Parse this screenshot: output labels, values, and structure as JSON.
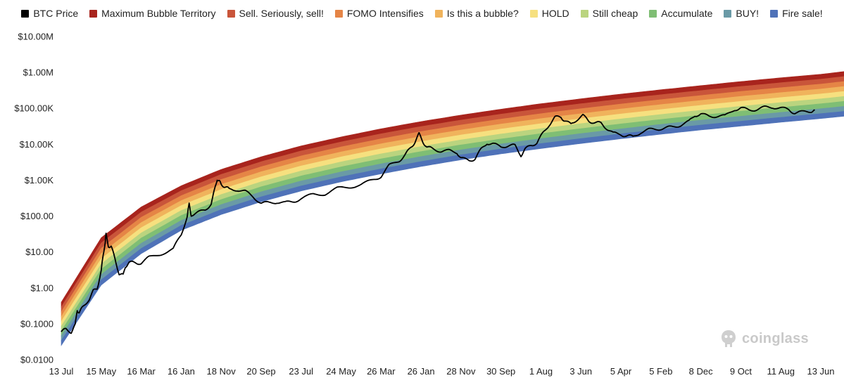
{
  "chart_data": {
    "type": "line",
    "title": "",
    "xlabel": "",
    "ylabel": "",
    "y_scale": "log",
    "ylim": [
      0.01,
      10000000
    ],
    "y_ticks": [
      {
        "value": 0.01,
        "label": "$0.0100"
      },
      {
        "value": 0.1,
        "label": "$0.1000"
      },
      {
        "value": 1,
        "label": "$1.00"
      },
      {
        "value": 10,
        "label": "$10.00"
      },
      {
        "value": 100,
        "label": "$100.00"
      },
      {
        "value": 1000,
        "label": "$1.00K"
      },
      {
        "value": 10000,
        "label": "$10.00K"
      },
      {
        "value": 100000,
        "label": "$100.00K"
      },
      {
        "value": 1000000,
        "label": "$1.00M"
      },
      {
        "value": 10000000,
        "label": "$10.00M"
      }
    ],
    "x_tick_labels": [
      "13 Jul",
      "15 May",
      "16 Mar",
      "16 Jan",
      "18 Nov",
      "20 Sep",
      "23 Jul",
      "24 May",
      "26 Mar",
      "26 Jan",
      "28 Nov",
      "30 Sep",
      "1 Aug",
      "3 Jun",
      "5 Apr",
      "5 Feb",
      "8 Dec",
      "9 Oct",
      "11 Aug",
      "13 Jun"
    ],
    "legend_position": "top",
    "grid": false,
    "bands": [
      {
        "name": "Maximum Bubble Territory",
        "color": "#a8241d"
      },
      {
        "name": "Sell. Seriously, sell!",
        "color": "#c9553a"
      },
      {
        "name": "FOMO Intensifies",
        "color": "#e58546"
      },
      {
        "name": "Is this a bubble?",
        "color": "#f0b35c"
      },
      {
        "name": "HOLD",
        "color": "#f6e07f"
      },
      {
        "name": "Still cheap",
        "color": "#bad47f"
      },
      {
        "name": "Accumulate",
        "color": "#7fbe74"
      },
      {
        "name": "BUY!",
        "color": "#6a9aa6"
      },
      {
        "name": "Fire sale!",
        "color": "#4f72b8"
      }
    ],
    "band_top_edge": [
      {
        "x": 0,
        "y": 0.4
      },
      {
        "x": 1,
        "y": 25
      },
      {
        "x": 2,
        "y": 180
      },
      {
        "x": 3,
        "y": 700
      },
      {
        "x": 4,
        "y": 2000
      },
      {
        "x": 5,
        "y": 4500
      },
      {
        "x": 6,
        "y": 9000
      },
      {
        "x": 7,
        "y": 16000
      },
      {
        "x": 8,
        "y": 27000
      },
      {
        "x": 9,
        "y": 43000
      },
      {
        "x": 10,
        "y": 65000
      },
      {
        "x": 11,
        "y": 95000
      },
      {
        "x": 12,
        "y": 135000
      },
      {
        "x": 13,
        "y": 185000
      },
      {
        "x": 14,
        "y": 250000
      },
      {
        "x": 15,
        "y": 330000
      },
      {
        "x": 16,
        "y": 430000
      },
      {
        "x": 17,
        "y": 560000
      },
      {
        "x": 18,
        "y": 710000
      },
      {
        "x": 19,
        "y": 890000
      },
      {
        "x": 19.7,
        "y": 1100000
      }
    ],
    "band_bottom_edge": [
      {
        "x": 0,
        "y": 0.025
      },
      {
        "x": 1,
        "y": 1.2
      },
      {
        "x": 2,
        "y": 9
      },
      {
        "x": 3,
        "y": 40
      },
      {
        "x": 4,
        "y": 110
      },
      {
        "x": 5,
        "y": 250
      },
      {
        "x": 6,
        "y": 500
      },
      {
        "x": 7,
        "y": 900
      },
      {
        "x": 8,
        "y": 1500
      },
      {
        "x": 9,
        "y": 2400
      },
      {
        "x": 10,
        "y": 3700
      },
      {
        "x": 11,
        "y": 5400
      },
      {
        "x": 12,
        "y": 7600
      },
      {
        "x": 13,
        "y": 10500
      },
      {
        "x": 14,
        "y": 14200
      },
      {
        "x": 15,
        "y": 19000
      },
      {
        "x": 16,
        "y": 25000
      },
      {
        "x": 17,
        "y": 32000
      },
      {
        "x": 18,
        "y": 41000
      },
      {
        "x": 19,
        "y": 52000
      },
      {
        "x": 19.7,
        "y": 62000
      }
    ],
    "series": [
      {
        "name": "BTC Price",
        "color": "#000000",
        "points": [
          {
            "x": 0.0,
            "y": 0.06
          },
          {
            "x": 0.12,
            "y": 0.07
          },
          {
            "x": 0.25,
            "y": 0.06
          },
          {
            "x": 0.35,
            "y": 0.09
          },
          {
            "x": 0.4,
            "y": 0.25
          },
          {
            "x": 0.45,
            "y": 0.2
          },
          {
            "x": 0.55,
            "y": 0.3
          },
          {
            "x": 0.7,
            "y": 0.5
          },
          {
            "x": 0.8,
            "y": 0.8
          },
          {
            "x": 0.9,
            "y": 1.0
          },
          {
            "x": 1.0,
            "y": 3.0
          },
          {
            "x": 1.05,
            "y": 8
          },
          {
            "x": 1.1,
            "y": 20
          },
          {
            "x": 1.12,
            "y": 30
          },
          {
            "x": 1.18,
            "y": 15
          },
          {
            "x": 1.25,
            "y": 14
          },
          {
            "x": 1.35,
            "y": 6
          },
          {
            "x": 1.45,
            "y": 2.5
          },
          {
            "x": 1.55,
            "y": 2.2
          },
          {
            "x": 1.6,
            "y": 4
          },
          {
            "x": 1.7,
            "y": 5
          },
          {
            "x": 1.85,
            "y": 5
          },
          {
            "x": 2.0,
            "y": 5
          },
          {
            "x": 2.2,
            "y": 7
          },
          {
            "x": 2.5,
            "y": 9
          },
          {
            "x": 2.8,
            "y": 12
          },
          {
            "x": 3.0,
            "y": 30
          },
          {
            "x": 3.15,
            "y": 100
          },
          {
            "x": 3.2,
            "y": 210
          },
          {
            "x": 3.25,
            "y": 110
          },
          {
            "x": 3.4,
            "y": 120
          },
          {
            "x": 3.6,
            "y": 150
          },
          {
            "x": 3.75,
            "y": 220
          },
          {
            "x": 3.85,
            "y": 600
          },
          {
            "x": 3.9,
            "y": 1100
          },
          {
            "x": 3.95,
            "y": 900
          },
          {
            "x": 4.0,
            "y": 800
          },
          {
            "x": 4.1,
            "y": 650
          },
          {
            "x": 4.2,
            "y": 550
          },
          {
            "x": 4.4,
            "y": 550
          },
          {
            "x": 4.6,
            "y": 480
          },
          {
            "x": 4.8,
            "y": 350
          },
          {
            "x": 5.0,
            "y": 230
          },
          {
            "x": 5.2,
            "y": 230
          },
          {
            "x": 5.4,
            "y": 250
          },
          {
            "x": 5.6,
            "y": 230
          },
          {
            "x": 5.8,
            "y": 260
          },
          {
            "x": 6.0,
            "y": 300
          },
          {
            "x": 6.3,
            "y": 400
          },
          {
            "x": 6.6,
            "y": 420
          },
          {
            "x": 6.9,
            "y": 580
          },
          {
            "x": 7.2,
            "y": 650
          },
          {
            "x": 7.5,
            "y": 750
          },
          {
            "x": 7.8,
            "y": 1000
          },
          {
            "x": 8.0,
            "y": 1300
          },
          {
            "x": 8.2,
            "y": 2500
          },
          {
            "x": 8.45,
            "y": 3500
          },
          {
            "x": 8.6,
            "y": 5000
          },
          {
            "x": 8.75,
            "y": 8000
          },
          {
            "x": 8.85,
            "y": 12000
          },
          {
            "x": 8.95,
            "y": 19000
          },
          {
            "x": 9.05,
            "y": 12000
          },
          {
            "x": 9.15,
            "y": 8000
          },
          {
            "x": 9.3,
            "y": 7500
          },
          {
            "x": 9.5,
            "y": 6500
          },
          {
            "x": 9.7,
            "y": 6500
          },
          {
            "x": 9.9,
            "y": 6000
          },
          {
            "x": 10.0,
            "y": 4000
          },
          {
            "x": 10.2,
            "y": 3500
          },
          {
            "x": 10.35,
            "y": 4000
          },
          {
            "x": 10.5,
            "y": 7000
          },
          {
            "x": 10.65,
            "y": 11000
          },
          {
            "x": 10.8,
            "y": 10000
          },
          {
            "x": 11.0,
            "y": 8500
          },
          {
            "x": 11.2,
            "y": 9500
          },
          {
            "x": 11.35,
            "y": 9000
          },
          {
            "x": 11.5,
            "y": 5000
          },
          {
            "x": 11.6,
            "y": 7000
          },
          {
            "x": 11.75,
            "y": 9500
          },
          {
            "x": 11.9,
            "y": 11000
          },
          {
            "x": 12.05,
            "y": 20000
          },
          {
            "x": 12.2,
            "y": 35000
          },
          {
            "x": 12.35,
            "y": 55000
          },
          {
            "x": 12.5,
            "y": 58000
          },
          {
            "x": 12.6,
            "y": 45000
          },
          {
            "x": 12.75,
            "y": 35000
          },
          {
            "x": 12.9,
            "y": 50000
          },
          {
            "x": 13.05,
            "y": 62000
          },
          {
            "x": 13.2,
            "y": 45000
          },
          {
            "x": 13.35,
            "y": 40000
          },
          {
            "x": 13.5,
            "y": 38000
          },
          {
            "x": 13.65,
            "y": 28000
          },
          {
            "x": 13.8,
            "y": 20000
          },
          {
            "x": 14.0,
            "y": 19000
          },
          {
            "x": 14.15,
            "y": 17000
          },
          {
            "x": 14.3,
            "y": 16000
          },
          {
            "x": 14.5,
            "y": 22000
          },
          {
            "x": 14.7,
            "y": 25000
          },
          {
            "x": 14.9,
            "y": 27000
          },
          {
            "x": 15.1,
            "y": 28000
          },
          {
            "x": 15.3,
            "y": 30000
          },
          {
            "x": 15.5,
            "y": 35000
          },
          {
            "x": 15.7,
            "y": 42000
          },
          {
            "x": 15.85,
            "y": 65000
          },
          {
            "x": 16.0,
            "y": 68000
          },
          {
            "x": 16.2,
            "y": 60000
          },
          {
            "x": 16.4,
            "y": 62000
          },
          {
            "x": 16.6,
            "y": 60000
          },
          {
            "x": 16.85,
            "y": 95000
          },
          {
            "x": 17.0,
            "y": 100000
          },
          {
            "x": 17.2,
            "y": 90000
          },
          {
            "x": 17.4,
            "y": 95000
          },
          {
            "x": 17.6,
            "y": 105000
          },
          {
            "x": 17.8,
            "y": 110000
          },
          {
            "x": 18.0,
            "y": 100000
          },
          {
            "x": 18.2,
            "y": 92000
          },
          {
            "x": 18.35,
            "y": 75000
          },
          {
            "x": 18.55,
            "y": 78000
          },
          {
            "x": 18.75,
            "y": 85000
          },
          {
            "x": 18.85,
            "y": 88000
          }
        ]
      }
    ]
  },
  "legend": {
    "items": [
      {
        "label": "BTC Price",
        "color": "#000000"
      },
      {
        "label": "Maximum Bubble Territory",
        "color": "#a8241d"
      },
      {
        "label": "Sell. Seriously, sell!",
        "color": "#c9553a"
      },
      {
        "label": "FOMO Intensifies",
        "color": "#e58546"
      },
      {
        "label": "Is this a bubble?",
        "color": "#f0b35c"
      },
      {
        "label": "HOLD",
        "color": "#f6e07f"
      },
      {
        "label": "Still cheap",
        "color": "#bad47f"
      },
      {
        "label": "Accumulate",
        "color": "#7fbe74"
      },
      {
        "label": "BUY!",
        "color": "#6a9aa6"
      },
      {
        "label": "Fire sale!",
        "color": "#4f72b8"
      }
    ]
  },
  "watermark": {
    "text": "coinglass",
    "icon": "coinglass-logo-icon"
  }
}
